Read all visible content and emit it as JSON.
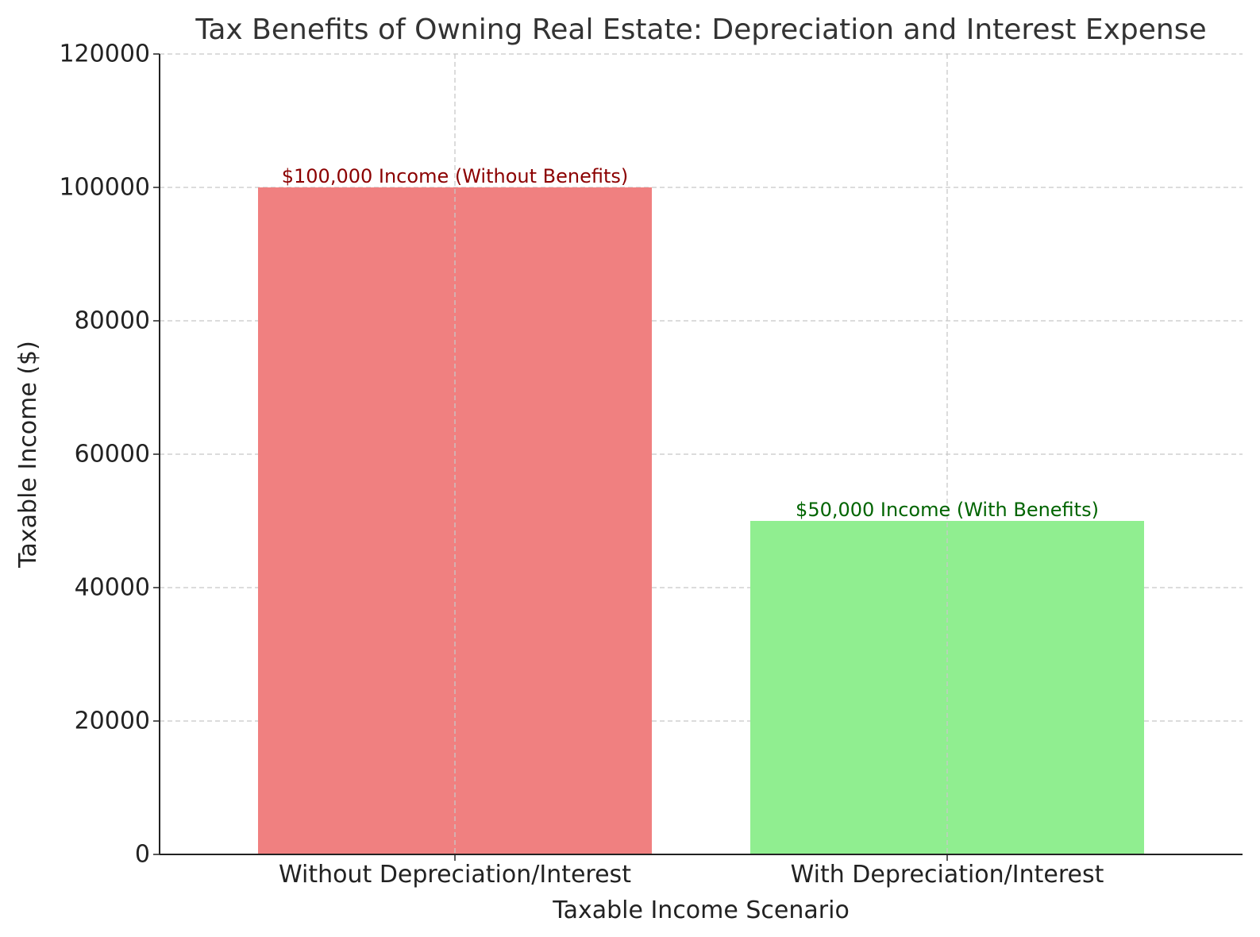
{
  "chart_data": {
    "type": "bar",
    "title": "Tax Benefits of Owning Real Estate: Depreciation and Interest Expense",
    "xlabel": "Taxable Income Scenario",
    "ylabel": "Taxable Income ($)",
    "categories": [
      "Without Depreciation/Interest",
      "With Depreciation/Interest"
    ],
    "values": [
      100000,
      50000
    ],
    "bar_colors": [
      "#f08080",
      "#90ee90"
    ],
    "data_labels": [
      "$100,000 Income (Without Benefits)",
      "$50,000 Income (With Benefits)"
    ],
    "data_label_colors": [
      "#8b0000",
      "#006400"
    ],
    "ylim": [
      0,
      120000
    ],
    "yticks": [
      0,
      20000,
      40000,
      60000,
      80000,
      100000,
      120000
    ],
    "grid": true,
    "grid_style": "dashed"
  }
}
